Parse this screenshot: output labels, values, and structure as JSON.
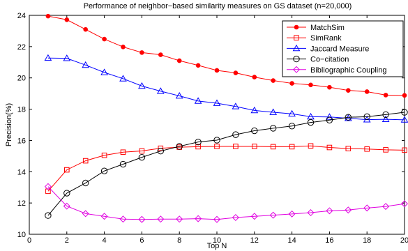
{
  "chart_data": {
    "type": "line",
    "title": "Performance of neighbor−based similarity measures on GS dataset (n=20,000)",
    "xlabel": "Top N",
    "ylabel": "Precision(%)",
    "xlim": [
      0,
      20
    ],
    "ylim": [
      10,
      24
    ],
    "xticks": [
      0,
      2,
      4,
      6,
      8,
      10,
      12,
      14,
      16,
      18,
      20
    ],
    "yticks": [
      10,
      12,
      14,
      16,
      18,
      20,
      22,
      24
    ],
    "grid": false,
    "legend_position": "top-right",
    "x": [
      1,
      2,
      3,
      4,
      5,
      6,
      7,
      8,
      9,
      10,
      11,
      12,
      13,
      14,
      15,
      16,
      17,
      18,
      19,
      20
    ],
    "series": [
      {
        "name": "MatchSim",
        "color": "#ff0000",
        "marker": "filled-circle",
        "values": [
          23.95,
          23.72,
          23.1,
          22.48,
          21.98,
          21.62,
          21.48,
          21.1,
          20.8,
          20.48,
          20.32,
          20.05,
          19.83,
          19.65,
          19.55,
          19.4,
          19.2,
          19.12,
          18.9,
          18.88
        ]
      },
      {
        "name": "SimRank",
        "color": "#ff0000",
        "marker": "open-square",
        "values": [
          12.75,
          14.12,
          14.7,
          15.05,
          15.25,
          15.33,
          15.5,
          15.57,
          15.6,
          15.62,
          15.62,
          15.62,
          15.6,
          15.6,
          15.65,
          15.55,
          15.48,
          15.45,
          15.4,
          15.38
        ]
      },
      {
        "name": "Jaccard Measure",
        "color": "#0000ff",
        "marker": "open-triangle",
        "values": [
          21.27,
          21.25,
          20.82,
          20.35,
          19.95,
          19.48,
          19.15,
          18.85,
          18.52,
          18.38,
          18.17,
          17.92,
          17.8,
          17.7,
          17.52,
          17.5,
          17.42,
          17.33,
          17.35,
          17.32
        ]
      },
      {
        "name": "Co−citation",
        "color": "#000000",
        "marker": "open-circle",
        "values": [
          11.2,
          12.63,
          13.28,
          14.05,
          14.48,
          14.92,
          15.32,
          15.62,
          15.9,
          16.02,
          16.37,
          16.62,
          16.78,
          16.92,
          17.15,
          17.3,
          17.48,
          17.52,
          17.65,
          17.8
        ]
      },
      {
        "name": "Bibliographic Coupling",
        "color": "#e000e0",
        "marker": "open-diamond",
        "values": [
          13.05,
          11.8,
          11.32,
          11.15,
          10.97,
          10.95,
          10.97,
          10.97,
          11.0,
          10.95,
          11.07,
          11.15,
          11.22,
          11.3,
          11.38,
          11.5,
          11.55,
          11.68,
          11.78,
          11.95
        ]
      }
    ]
  }
}
